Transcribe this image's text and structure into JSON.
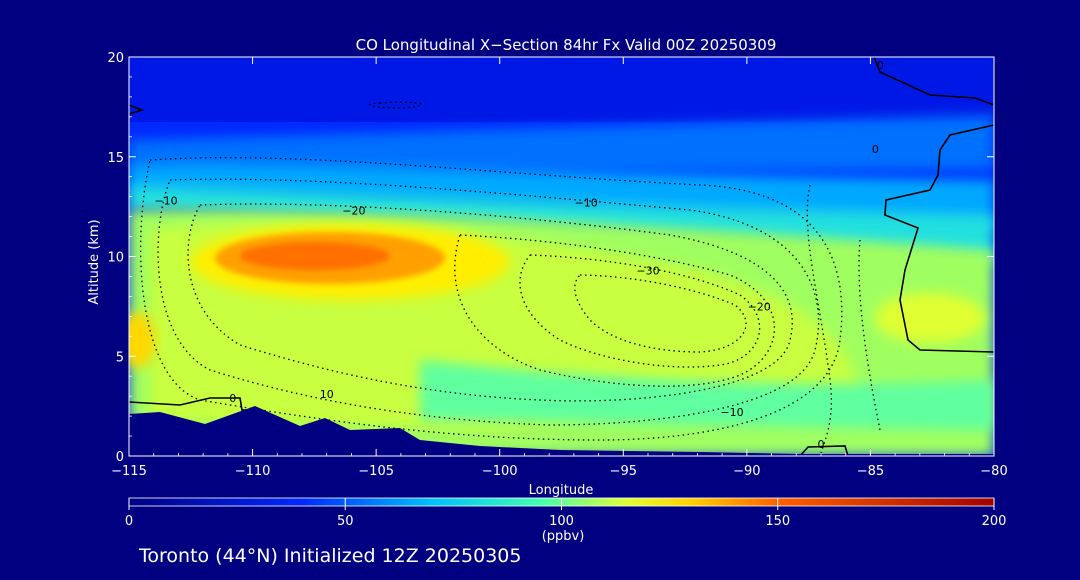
{
  "chart_data": {
    "type": "filled-contour",
    "title": "CO Longitudinal X−Section 84hr  Fx Valid 00Z 20250309",
    "footer": "Toronto (44°N) Initialized 12Z 20250305",
    "xlabel": "Longitude",
    "ylabel": "Altitude (km)",
    "xlim": [
      -115,
      -80
    ],
    "ylim": [
      0,
      20
    ],
    "x_ticks": [
      -115,
      -110,
      -105,
      -100,
      -95,
      -90,
      -85,
      -80
    ],
    "x_tick_labels": [
      "−115",
      "−110",
      "−105",
      "−100",
      "−95",
      "−90",
      "−85",
      "−80"
    ],
    "y_ticks": [
      0,
      5,
      10,
      15,
      20
    ],
    "y_tick_labels": [
      "0",
      "5",
      "10",
      "15",
      "20"
    ],
    "colorbar": {
      "label": "(ppbv)",
      "min": 0,
      "max": 200,
      "ticks": [
        0,
        50,
        100,
        150,
        200
      ],
      "tick_labels": [
        "0",
        "50",
        "100",
        "150",
        "200"
      ],
      "stops": [
        {
          "value": 0,
          "color": "#000080"
        },
        {
          "value": 40,
          "color": "#0028ff"
        },
        {
          "value": 70,
          "color": "#00c0ff"
        },
        {
          "value": 95,
          "color": "#40ffb0"
        },
        {
          "value": 115,
          "color": "#e0ff30"
        },
        {
          "value": 130,
          "color": "#ffd000"
        },
        {
          "value": 150,
          "color": "#ff6000"
        },
        {
          "value": 200,
          "color": "#a00000"
        }
      ]
    },
    "contour_labels": [
      {
        "text": "−10",
        "lon": -113.5,
        "alt": 12.8
      },
      {
        "text": "−20",
        "lon": -105.9,
        "alt": 12.3
      },
      {
        "text": "−10",
        "lon": -96.5,
        "alt": 12.7
      },
      {
        "text": "−30",
        "lon": -94.0,
        "alt": 9.3
      },
      {
        "text": "−20",
        "lon": -89.5,
        "alt": 7.5
      },
      {
        "text": "−10",
        "lon": -90.6,
        "alt": 2.2
      },
      {
        "text": "10",
        "lon": -107.0,
        "alt": 3.1
      },
      {
        "text": "0",
        "lon": -110.8,
        "alt": 2.9
      },
      {
        "text": "0",
        "lon": -87.0,
        "alt": 0.6
      },
      {
        "text": "0",
        "lon": -84.8,
        "alt": 15.4
      },
      {
        "text": "0",
        "lon": -84.6,
        "alt": 19.6
      }
    ]
  }
}
